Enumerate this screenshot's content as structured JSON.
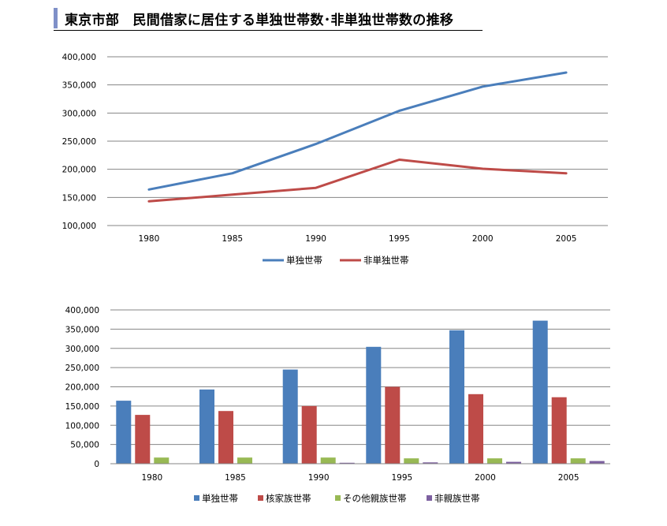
{
  "title": "東京市部　民間借家に居住する単独世帯数･非単独世帯数の推移",
  "colors": {
    "title_bar": "#7f90c8",
    "single": "#4a7ebb",
    "non_single": "#be4b48",
    "nuclear": "#be4b48",
    "other_relatives": "#98b954",
    "non_relatives": "#7d60a0",
    "gridline": "#868686"
  },
  "chart_data": [
    {
      "type": "line",
      "x": [
        "1980",
        "1985",
        "1990",
        "1995",
        "2000",
        "2005"
      ],
      "y_ticks": [
        "100,000",
        "150,000",
        "200,000",
        "250,000",
        "300,000",
        "350,000",
        "400,000"
      ],
      "ylim": [
        100000,
        400000
      ],
      "grid": true,
      "legend_position": "bottom",
      "series": [
        {
          "name": "単独世帯",
          "color": "#4a7ebb",
          "values": [
            164000,
            193000,
            245000,
            304000,
            347000,
            372000
          ]
        },
        {
          "name": "非単独世帯",
          "color": "#be4b48",
          "values": [
            143000,
            155000,
            167000,
            217000,
            201000,
            193000
          ]
        }
      ]
    },
    {
      "type": "bar",
      "categories": [
        "1980",
        "1985",
        "1990",
        "1995",
        "2000",
        "2005"
      ],
      "y_ticks": [
        "0",
        "50,000",
        "100,000",
        "150,000",
        "200,000",
        "250,000",
        "300,000",
        "350,000",
        "400,000"
      ],
      "ylim": [
        0,
        400000
      ],
      "grid": true,
      "legend_position": "bottom",
      "series": [
        {
          "name": "単独世帯",
          "color": "#4a7ebb",
          "values": [
            164000,
            193000,
            245000,
            304000,
            347000,
            372000
          ]
        },
        {
          "name": "核家族世帯",
          "color": "#be4b48",
          "values": [
            127000,
            137000,
            150000,
            200000,
            181000,
            173000
          ]
        },
        {
          "name": "その他親族世帯",
          "color": "#98b954",
          "values": [
            16000,
            16000,
            16000,
            14000,
            14000,
            14000
          ]
        },
        {
          "name": "非親族世帯",
          "color": "#7d60a0",
          "values": [
            500,
            900,
            2500,
            3500,
            5000,
            7000
          ]
        }
      ]
    }
  ]
}
